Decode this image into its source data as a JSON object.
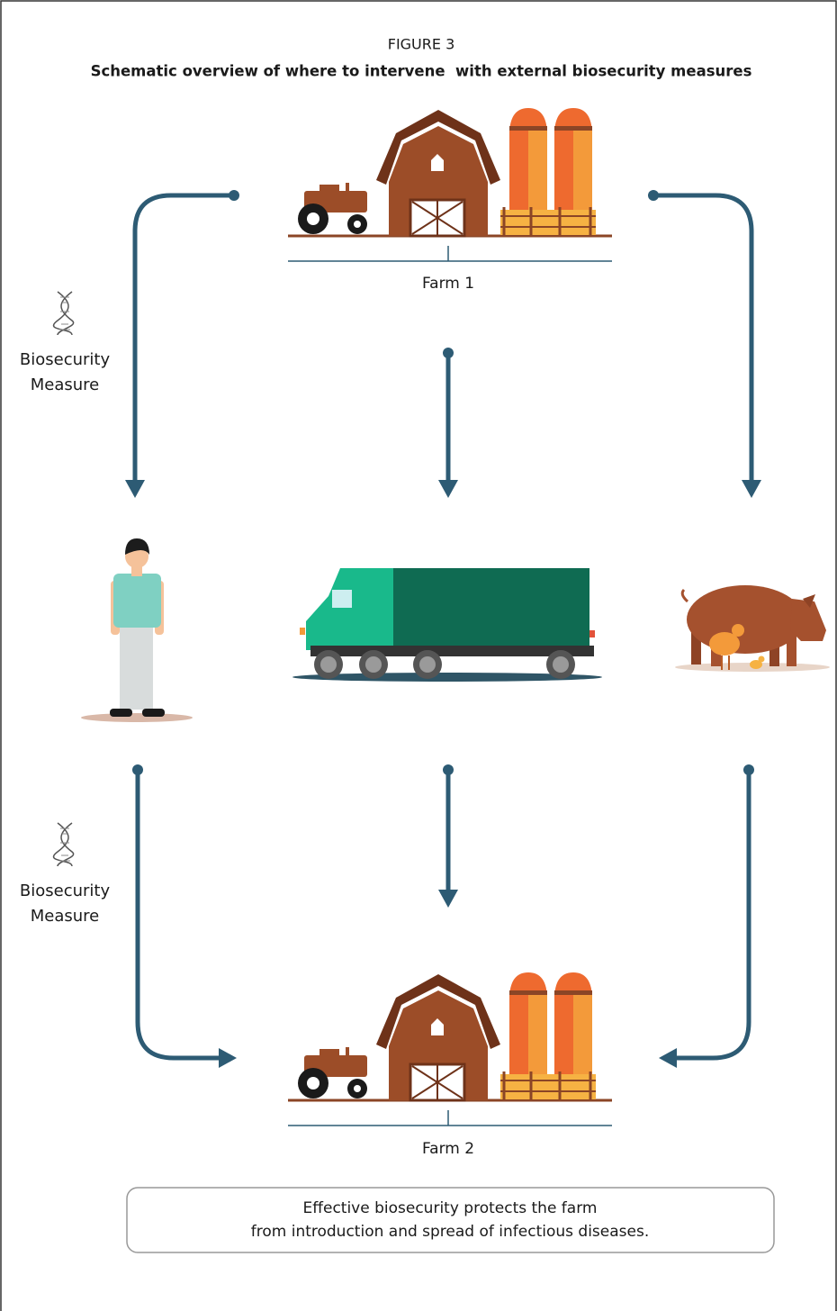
{
  "figure": {
    "label": "FIGURE 3",
    "title": "Schematic overview of where to intervene  with external biosecurity measures"
  },
  "nodes": [
    {
      "label": "Farm 1"
    },
    {
      "label": "Farm 2"
    }
  ],
  "measures": [
    {
      "lines": [
        "Biosecurity",
        "Measure"
      ]
    },
    {
      "lines": [
        "Biosecurity",
        "Measure"
      ]
    }
  ],
  "note": {
    "lines": [
      "Effective biosecurity protects the farm",
      "from introduction and spread of infectious diseases."
    ]
  }
}
